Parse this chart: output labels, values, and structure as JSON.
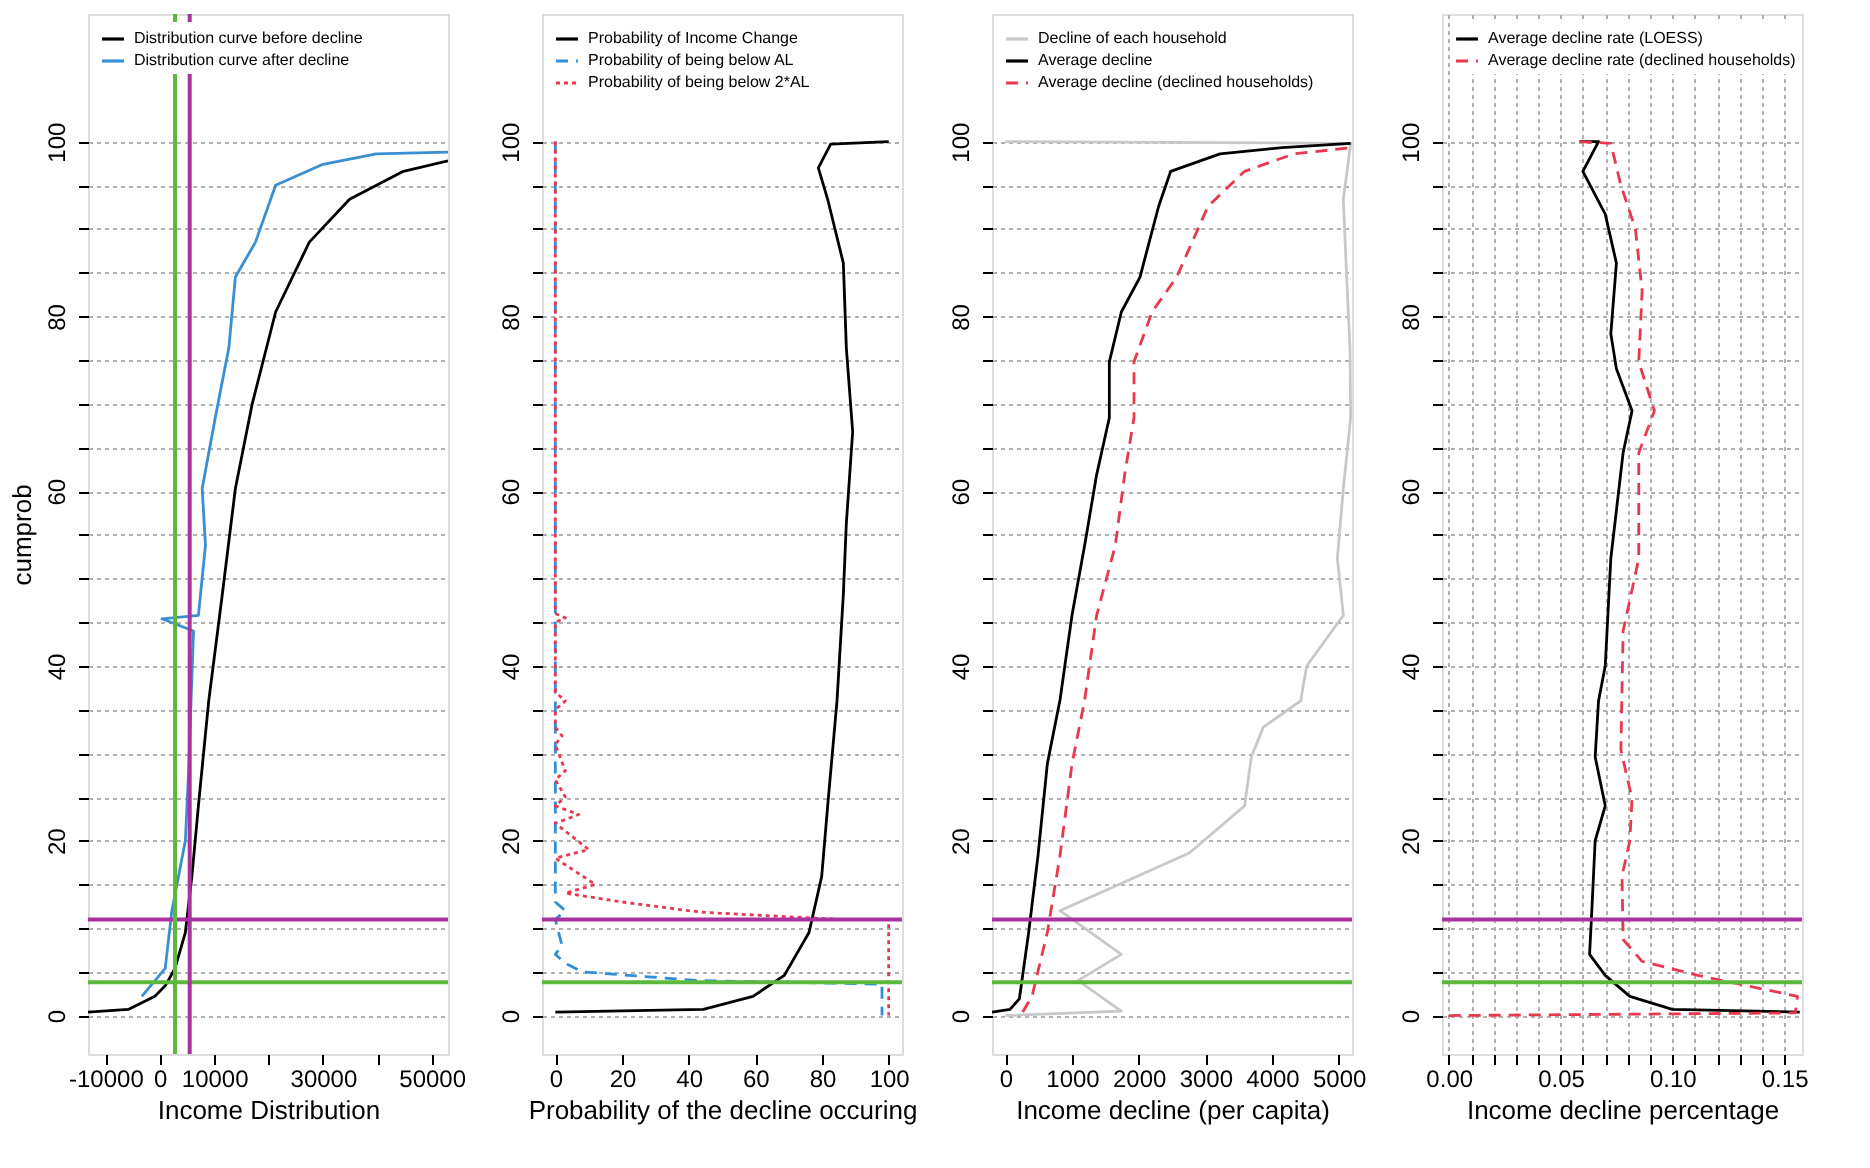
{
  "chart_data": [
    {
      "type": "line",
      "xlabel": "Income Distribution",
      "ylabel": "cumprob",
      "xlim": [
        -13200,
        53000
      ],
      "ylim": [
        -4.4,
        114.6
      ],
      "xticks": [
        -10000,
        0,
        10000,
        {
          "value": 20000,
          "label": null
        },
        30000,
        {
          "value": 40000,
          "label": null
        },
        50000
      ],
      "yticks": [
        0,
        {
          "value": 5,
          "label": null
        },
        {
          "value": 10,
          "label": null
        },
        {
          "value": 15,
          "label": null
        },
        20,
        {
          "value": 25,
          "label": null
        },
        {
          "value": 30,
          "label": null
        },
        {
          "value": 35,
          "label": null
        },
        40,
        {
          "value": 45,
          "label": null
        },
        {
          "value": 50,
          "label": null
        },
        {
          "value": 55,
          "label": null
        },
        60,
        {
          "value": 65,
          "label": null
        },
        {
          "value": 70,
          "label": null
        },
        {
          "value": 75,
          "label": null
        },
        80,
        {
          "value": 85,
          "label": null
        },
        {
          "value": 90,
          "label": null
        },
        {
          "value": 95,
          "label": null
        },
        100
      ],
      "grid": "y",
      "legend": "top left",
      "series": [
        {
          "name": "Distribution curve before decline",
          "color": "#000000",
          "line_style": "solid",
          "x": [
            -13200,
            -5800,
            -900,
            1000,
            2800,
            4700,
            5900,
            7100,
            9000,
            11500,
            13900,
            17000,
            21300,
            27500,
            34900,
            44800,
            53000
          ],
          "values": [
            0.4,
            0.7,
            2.2,
            3.4,
            5.4,
            9.5,
            15.9,
            24,
            36,
            48.2,
            60.3,
            70,
            80.5,
            88.5,
            93.4,
            96.6,
            97.8
          ]
        },
        {
          "name": "Distribution curve after decline",
          "color": "#3a8fd0",
          "line_style": "solid",
          "x": [
            -3300,
            1000,
            2200,
            4700,
            5300,
            6200,
            400,
            7100,
            8400,
            7800,
            10200,
            12700,
            13900,
            17600,
            21300,
            30000,
            39800,
            53000
          ],
          "values": [
            2.2,
            5.4,
            11.9,
            20,
            28,
            44,
            45.4,
            45.8,
            53.8,
            60.3,
            68.4,
            76.4,
            84.5,
            88.5,
            95,
            97.4,
            98.6,
            98.8
          ]
        }
      ],
      "ref_lines": [
        {
          "axis": "y",
          "value": 3.8,
          "color": "#5cb83c"
        },
        {
          "axis": "y",
          "value": 11,
          "color": "#a8329e"
        },
        {
          "axis": "x",
          "value": 2800,
          "color": "#5cb83c"
        },
        {
          "axis": "x",
          "value": 5500,
          "color": "#a8329e"
        }
      ]
    },
    {
      "type": "line",
      "xlabel": "Probability of the decline occuring",
      "xlim": [
        -4,
        104
      ],
      "ylim": [
        -4.4,
        114.6
      ],
      "xticks": [
        0,
        20,
        40,
        60,
        80,
        100
      ],
      "yticks": [
        0,
        {
          "value": 5,
          "label": null
        },
        {
          "value": 10,
          "label": null
        },
        {
          "value": 15,
          "label": null
        },
        20,
        {
          "value": 25,
          "label": null
        },
        {
          "value": 30,
          "label": null
        },
        {
          "value": 35,
          "label": null
        },
        40,
        {
          "value": 45,
          "label": null
        },
        {
          "value": 50,
          "label": null
        },
        {
          "value": 55,
          "label": null
        },
        60,
        {
          "value": 65,
          "label": null
        },
        {
          "value": 70,
          "label": null
        },
        {
          "value": 75,
          "label": null
        },
        80,
        {
          "value": 85,
          "label": null
        },
        {
          "value": 90,
          "label": null
        },
        {
          "value": 95,
          "label": null
        },
        100
      ],
      "grid": "y",
      "legend": "top left",
      "series": [
        {
          "name": "Probability of Income Change",
          "color": "#000000",
          "line_style": "solid",
          "x": [
            0,
            44.4,
            59.3,
            68.7,
            76.1,
            79.9,
            81.7,
            84.5,
            86.4,
            87.3,
            89.2,
            87.3,
            86.4,
            81.7,
            78.9,
            82.6,
            100
          ],
          "values": [
            0.4,
            0.7,
            2.2,
            4.6,
            9.5,
            15.9,
            24,
            36,
            48.2,
            56.3,
            66.8,
            76.4,
            86.1,
            93.4,
            97,
            99.7,
            100
          ]
        },
        {
          "name": "Probability of being below AL",
          "color": "#2f8fd8",
          "line_style": "dashed",
          "x": [
            0,
            0,
            3,
            0,
            2,
            0,
            3,
            8,
            43,
            98,
            98
          ],
          "values": [
            100,
            13,
            12,
            11,
            8,
            7,
            6,
            5,
            4,
            3.6,
            0
          ]
        },
        {
          "name": "Probability of being below 2*AL",
          "color": "#e8384f",
          "line_style": "dotted",
          "x": [
            0,
            0,
            3,
            0,
            0,
            3,
            0,
            0,
            2,
            0,
            3,
            0,
            3,
            0,
            7,
            0,
            10,
            0,
            8,
            12,
            3,
            20,
            40,
            45,
            85,
            100,
            100
          ],
          "values": [
            100,
            46,
            45.5,
            45,
            37,
            36,
            35,
            33,
            32,
            31,
            28,
            27,
            25,
            24,
            23,
            22,
            19,
            18,
            16,
            15,
            14,
            13,
            12,
            11.8,
            11,
            11,
            0
          ]
        }
      ],
      "ref_lines": [
        {
          "axis": "y",
          "value": 3.8,
          "color": "#5cb83c"
        },
        {
          "axis": "y",
          "value": 11,
          "color": "#a8329e"
        }
      ]
    },
    {
      "type": "line",
      "xlabel": "Income decline (per capita)",
      "xlim": [
        -200,
        5200
      ],
      "ylim": [
        -4.4,
        114.6
      ],
      "xticks": [
        0,
        1000,
        2000,
        3000,
        4000,
        5000
      ],
      "yticks": [
        0,
        {
          "value": 5,
          "label": null
        },
        {
          "value": 10,
          "label": null
        },
        {
          "value": 15,
          "label": null
        },
        20,
        {
          "value": 25,
          "label": null
        },
        {
          "value": 30,
          "label": null
        },
        {
          "value": 35,
          "label": null
        },
        40,
        {
          "value": 45,
          "label": null
        },
        {
          "value": 50,
          "label": null
        },
        {
          "value": 55,
          "label": null
        },
        60,
        {
          "value": 65,
          "label": null
        },
        {
          "value": 70,
          "label": null
        },
        {
          "value": 75,
          "label": null
        },
        80,
        {
          "value": 85,
          "label": null
        },
        {
          "value": 90,
          "label": null
        },
        {
          "value": 95,
          "label": null
        },
        100
      ],
      "grid": "y",
      "legend": "top left",
      "series": [
        {
          "name": "Decline of each household",
          "color": "#c8c8c8",
          "line_style": "solid",
          "x": [
            0,
            1740,
            1090,
            1740,
            820,
            2760,
            3590,
            3690,
            3870,
            4430,
            4520,
            5070,
            4980,
            5070,
            5180,
            5170,
            5120,
            5070,
            5180,
            0
          ],
          "values": [
            0,
            0.5,
            4,
            7,
            12,
            18.6,
            24,
            29.6,
            33,
            36,
            40,
            45.8,
            52.3,
            60.3,
            68.4,
            76.4,
            84.5,
            93.4,
            99.8,
            100
          ]
        },
        {
          "name": "Average decline",
          "color": "#000000",
          "line_style": "solid",
          "x": [
            -200,
            70,
            210,
            350,
            490,
            630,
            820,
            1000,
            1190,
            1370,
            1560,
            1560,
            1740,
            2020,
            2300,
            2480,
            3220,
            4150,
            5180
          ],
          "values": [
            0.4,
            0.7,
            1.9,
            9.5,
            18.3,
            28.8,
            36.1,
            45.8,
            53.8,
            61.9,
            68.4,
            74.8,
            80.5,
            84.5,
            92.6,
            96.6,
            98.6,
            99.3,
            99.8
          ]
        },
        {
          "name": "Average decline (declined households)",
          "color": "#e8384f",
          "line_style": "dashed",
          "x": [
            260,
            400,
            630,
            820,
            1000,
            1190,
            1370,
            1650,
            1790,
            1930,
            1930,
            2200,
            2570,
            3040,
            3590,
            4330,
            5180
          ],
          "values": [
            0.4,
            2.2,
            9.5,
            18.3,
            28.8,
            36.1,
            45.8,
            53.8,
            61.9,
            68.4,
            74.8,
            80.5,
            84.5,
            92.6,
            96.6,
            98.6,
            99.3
          ]
        }
      ],
      "ref_lines": [
        {
          "axis": "y",
          "value": 3.8,
          "color": "#5cb83c"
        },
        {
          "axis": "y",
          "value": 11,
          "color": "#a8329e"
        }
      ]
    },
    {
      "type": "line",
      "xlabel": "Income decline percentage",
      "xlim": [
        -0.003,
        0.158
      ],
      "ylim": [
        -4.4,
        114.6
      ],
      "xticks": [
        {
          "value": 0,
          "label": "0.00"
        },
        {
          "value": 0.01,
          "label": null
        },
        {
          "value": 0.02,
          "label": null
        },
        {
          "value": 0.03,
          "label": null
        },
        {
          "value": 0.04,
          "label": null
        },
        0.05,
        {
          "value": 0.06,
          "label": null
        },
        {
          "value": 0.07,
          "label": null
        },
        {
          "value": 0.08,
          "label": null
        },
        {
          "value": 0.09,
          "label": null
        },
        {
          "value": 0.1,
          "label": "0.10"
        },
        {
          "value": 0.11,
          "label": null
        },
        {
          "value": 0.12,
          "label": null
        },
        {
          "value": 0.13,
          "label": null
        },
        {
          "value": 0.14,
          "label": null
        },
        0.15
      ],
      "yticks": [
        0,
        {
          "value": 5,
          "label": null
        },
        {
          "value": 10,
          "label": null
        },
        {
          "value": 15,
          "label": null
        },
        20,
        {
          "value": 25,
          "label": null
        },
        {
          "value": 30,
          "label": null
        },
        {
          "value": 35,
          "label": null
        },
        40,
        {
          "value": 45,
          "label": null
        },
        {
          "value": 50,
          "label": null
        },
        {
          "value": 55,
          "label": null
        },
        60,
        {
          "value": 65,
          "label": null
        },
        {
          "value": 70,
          "label": null
        },
        {
          "value": 75,
          "label": null
        },
        80,
        {
          "value": 85,
          "label": null
        },
        {
          "value": 90,
          "label": null
        },
        {
          "value": 95,
          "label": null
        },
        100
      ],
      "grid": true,
      "legend": "top left",
      "series": [
        {
          "name": "Average decline rate (LOESS)",
          "color": "#000000",
          "line_style": "solid",
          "x": [
            0.157,
            0.1,
            0.081,
            0.07,
            0.063,
            0.064,
            0.0655,
            0.07,
            0.0655,
            0.067,
            0.07,
            0.0725,
            0.078,
            0.082,
            0.075,
            0.0725,
            0.075,
            0.07,
            0.06,
            0.067,
            0.0585
          ],
          "values": [
            0.4,
            0.7,
            2.2,
            4.6,
            7,
            12,
            20,
            24,
            29.6,
            36,
            40,
            52.3,
            64.4,
            69.2,
            74,
            78,
            86.1,
            91.7,
            96.6,
            100,
            100
          ]
        },
        {
          "name": "Average decline rate (declined households)",
          "color": "#e8384f",
          "line_style": "dashed",
          "x": [
            0,
            0.155,
            0.156,
            0.1115,
            0.0865,
            0.078,
            0.0775,
            0.081,
            0.082,
            0.077,
            0.078,
            0.085,
            0.085,
            0.092,
            0.085,
            0.0865,
            0.0835,
            0.077,
            0.0725,
            0.0585
          ],
          "values": [
            0,
            0.3,
            2.2,
            4.6,
            6.2,
            8.7,
            16,
            20,
            24.8,
            30.4,
            44,
            52.3,
            64.4,
            69.2,
            74.8,
            82.9,
            90,
            95,
            99.8,
            100
          ]
        }
      ],
      "ref_lines": [
        {
          "axis": "y",
          "value": 3.8,
          "color": "#5cb83c"
        },
        {
          "axis": "y",
          "value": 11,
          "color": "#a8329e"
        }
      ]
    }
  ]
}
